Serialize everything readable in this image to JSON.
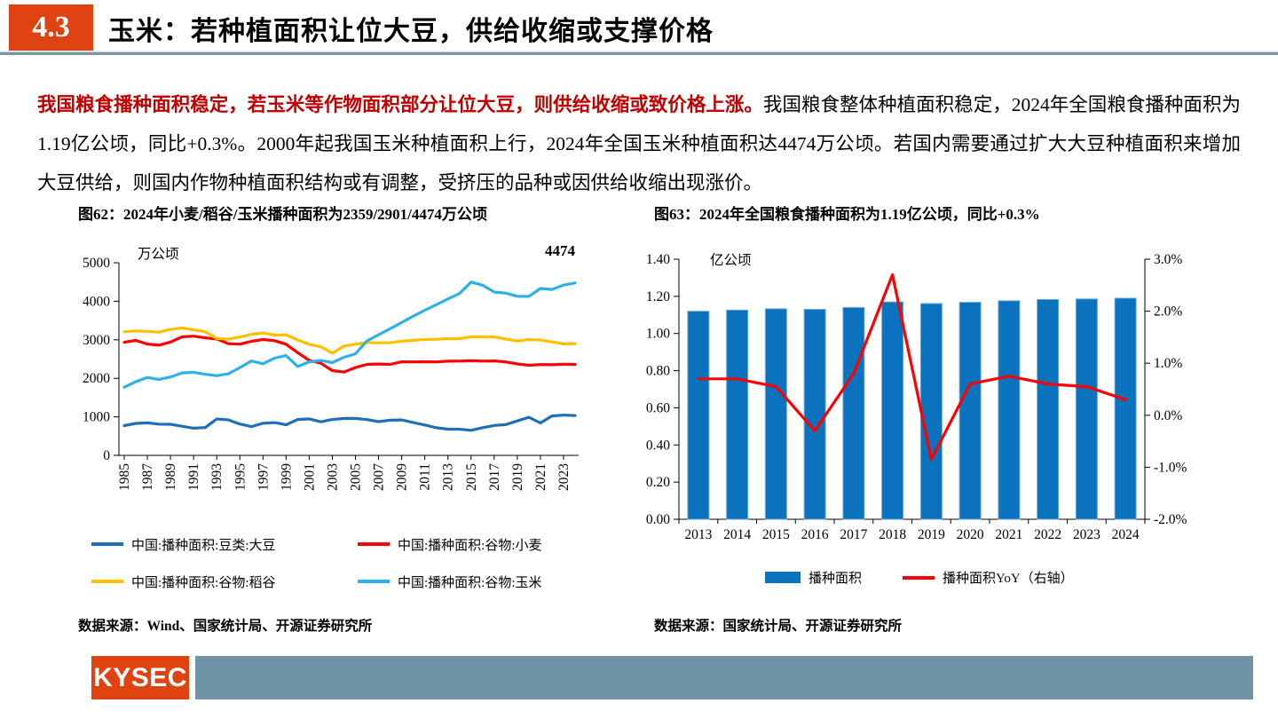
{
  "header": {
    "section_number": "4.3",
    "title": "玉米：若种植面积让位大豆，供给收缩或支撑价格"
  },
  "body": {
    "lead_red": "我国粮食播种面积稳定，若玉米等作物面积部分让位大豆，则供给收缩或致价格上涨。",
    "rest": "我国粮食整体种植面积稳定，2024年全国粮食播种面积为1.19亿公顷，同比+0.3%。2000年起我国玉米种植面积上行，2024年全国玉米种植面积达4474万公顷。若国内需要通过扩大大豆种植面积来增加大豆供给，则国内作物种植面积结构或有调整，受挤压的品种或因供给收缩出现涨价。"
  },
  "figure62": {
    "title": "图62：2024年小麦/稻谷/玉米播种面积为2359/2901/4474万公顷",
    "source": "数据来源：Wind、国家统计局、开源证券研究所"
  },
  "figure63": {
    "title": "图63：2024年全国粮食播种面积为1.19亿公顷，同比+0.3%",
    "source": "数据来源：国家统计局、开源证券研究所"
  },
  "footer": {
    "logo": "KYSEC"
  },
  "colors": {
    "accent_red": "#E04312",
    "lead_text_red": "#C00000",
    "soybean_blue": "#1F6FB5",
    "wheat_red": "#FE0000",
    "rice_yellow": "#FFC000",
    "corn_lightblue": "#2EB1E6",
    "bar_blue": "#0B72BE",
    "footer_gray": "#6F92A6"
  },
  "chart_data": [
    {
      "type": "line",
      "title": "图62：2024年小麦/稻谷/玉米播种面积为2359/2901/4474万公顷",
      "unit_label": "万公顷",
      "annotation": "4474",
      "x_start_year": 1985,
      "x_end_year": 2024,
      "x_tick_labels": [
        "1985",
        "1987",
        "1989",
        "1991",
        "1993",
        "1995",
        "1997",
        "1999",
        "2001",
        "2003",
        "2005",
        "2007",
        "2009",
        "2011",
        "2013",
        "2015",
        "2017",
        "2019",
        "2021",
        "2023"
      ],
      "ylim": [
        0,
        5000
      ],
      "yticks": [
        0,
        1000,
        2000,
        3000,
        4000,
        5000
      ],
      "legend_position": "bottom",
      "grid": false,
      "series": [
        {
          "name": "中国:播种面积:豆类:大豆",
          "color": "#1F6FB5",
          "values": [
            772,
            829,
            844,
            812,
            806,
            756,
            704,
            722,
            945,
            922,
            813,
            747,
            834,
            850,
            796,
            930,
            948,
            872,
            931,
            959,
            959,
            928,
            875,
            912,
            919,
            852,
            789,
            717,
            679,
            680,
            650,
            720,
            777,
            797,
            893,
            988,
            840,
            1024,
            1047,
            1033
          ]
        },
        {
          "name": "中国:播种面积:谷物:小麦",
          "color": "#FE0000",
          "values": [
            2936,
            2985,
            2890,
            2860,
            2943,
            3075,
            3095,
            3050,
            3024,
            2898,
            2886,
            2961,
            3006,
            2977,
            2885,
            2665,
            2466,
            2391,
            2200,
            2163,
            2279,
            2361,
            2372,
            2362,
            2429,
            2426,
            2432,
            2427,
            2445,
            2448,
            2457,
            2447,
            2451,
            2427,
            2373,
            2338,
            2357,
            2352,
            2363,
            2359
          ]
        },
        {
          "name": "中国:播种面积:谷物:稻谷",
          "color": "#FFC000",
          "values": [
            3207,
            3227,
            3219,
            3198,
            3270,
            3306,
            3259,
            3209,
            3035,
            3017,
            3074,
            3140,
            3177,
            3121,
            3128,
            2996,
            2882,
            2820,
            2651,
            2838,
            2885,
            2930,
            2919,
            2924,
            2963,
            2987,
            3006,
            3014,
            3031,
            3031,
            3078,
            3075,
            3075,
            3019,
            2969,
            3008,
            2992,
            2945,
            2895,
            2901
          ]
        },
        {
          "name": "中国:播种面积:谷物:玉米",
          "color": "#2EB1E6",
          "values": [
            1769,
            1912,
            2021,
            1969,
            2035,
            2140,
            2157,
            2104,
            2069,
            2115,
            2278,
            2450,
            2378,
            2524,
            2590,
            2306,
            2428,
            2463,
            2407,
            2545,
            2636,
            2971,
            3132,
            3287,
            3450,
            3612,
            3768,
            3912,
            4061,
            4201,
            4497,
            4418,
            4240,
            4213,
            4128,
            4126,
            4332,
            4307,
            4422,
            4474
          ]
        }
      ]
    },
    {
      "type": "bar",
      "title": "图63：2024年全国粮食播种面积为1.19亿公顷，同比+0.3%",
      "unit_label": "亿公顷",
      "categories": [
        "2013",
        "2014",
        "2015",
        "2016",
        "2017",
        "2018",
        "2019",
        "2020",
        "2021",
        "2022",
        "2023",
        "2024"
      ],
      "bars": {
        "name": "播种面积",
        "color": "#0B72BE",
        "values": [
          1.12,
          1.126,
          1.133,
          1.13,
          1.14,
          1.17,
          1.161,
          1.168,
          1.176,
          1.183,
          1.186,
          1.19
        ]
      },
      "line": {
        "name": "播种面积YoY（右轴）",
        "color": "#FE0000",
        "values": [
          0.7,
          0.7,
          0.55,
          -0.3,
          0.8,
          2.7,
          -0.85,
          0.6,
          0.75,
          0.6,
          0.55,
          0.3
        ]
      },
      "left_ylim": [
        0,
        1.4
      ],
      "left_ytick_labels": [
        "0.00",
        "0.20",
        "0.40",
        "0.60",
        "0.80",
        "1.00",
        "1.20",
        "1.40"
      ],
      "right_ylim": [
        -2.0,
        3.0
      ],
      "right_ytick_labels": [
        "-2.0%",
        "-1.0%",
        "0.0%",
        "1.0%",
        "2.0%",
        "3.0%"
      ],
      "legend_position": "bottom",
      "grid": false
    }
  ]
}
